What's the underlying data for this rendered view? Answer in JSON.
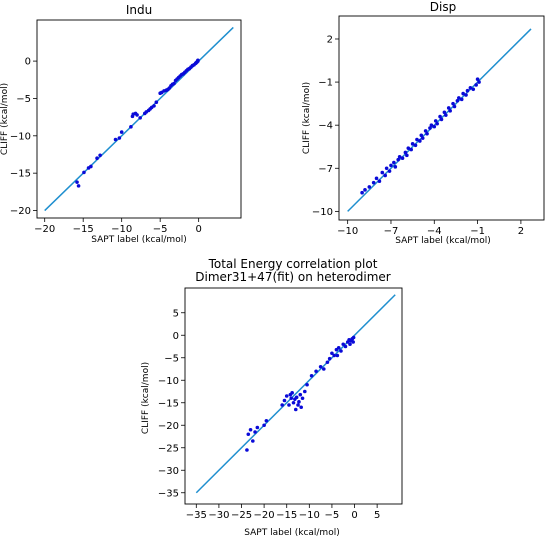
{
  "colors": {
    "line": "#1f8fcf",
    "points": "#0a0ad8"
  },
  "chart_data": [
    {
      "type": "scatter",
      "title": "Indu",
      "xlabel": "SAPT label (kcal/mol)",
      "ylabel": "CLIFF (kcal/mol)",
      "xlim": [
        -21,
        5.5
      ],
      "ylim": [
        -21,
        5.5
      ],
      "xticks": [
        -20,
        -15,
        -10,
        -5,
        0
      ],
      "yticks": [
        -20,
        -15,
        -10,
        -5,
        0
      ],
      "reference_line": [
        [
          -20,
          -20
        ],
        [
          4.5,
          4.5
        ]
      ],
      "points": [
        [
          -15.8,
          -16.2
        ],
        [
          -15.6,
          -16.7
        ],
        [
          -14.9,
          -14.9
        ],
        [
          -14.3,
          -14.3
        ],
        [
          -14.0,
          -14.1
        ],
        [
          -13.2,
          -13.0
        ],
        [
          -12.8,
          -12.6
        ],
        [
          -10.8,
          -10.5
        ],
        [
          -10.3,
          -10.3
        ],
        [
          -10.0,
          -9.5
        ],
        [
          -8.8,
          -8.8
        ],
        [
          -8.6,
          -7.4
        ],
        [
          -8.5,
          -7.1
        ],
        [
          -8.2,
          -7.0
        ],
        [
          -8.0,
          -7.2
        ],
        [
          -7.6,
          -7.6
        ],
        [
          -7.0,
          -7.0
        ],
        [
          -6.8,
          -6.8
        ],
        [
          -6.5,
          -6.6
        ],
        [
          -6.3,
          -6.4
        ],
        [
          -6.1,
          -6.2
        ],
        [
          -5.8,
          -6.0
        ],
        [
          -5.5,
          -5.5
        ],
        [
          -5.0,
          -4.3
        ],
        [
          -4.8,
          -4.2
        ],
        [
          -4.5,
          -4.0
        ],
        [
          -4.2,
          -3.9
        ],
        [
          -4.0,
          -3.8
        ],
        [
          -3.8,
          -3.6
        ],
        [
          -3.6,
          -3.3
        ],
        [
          -3.4,
          -3.1
        ],
        [
          -3.2,
          -3.0
        ],
        [
          -3.0,
          -2.6
        ],
        [
          -2.8,
          -2.4
        ],
        [
          -2.6,
          -2.2
        ],
        [
          -2.4,
          -2.0
        ],
        [
          -2.2,
          -1.8
        ],
        [
          -2.0,
          -1.7
        ],
        [
          -1.8,
          -1.5
        ],
        [
          -1.6,
          -1.3
        ],
        [
          -1.4,
          -1.1
        ],
        [
          -1.2,
          -1.0
        ],
        [
          -1.0,
          -0.8
        ],
        [
          -0.8,
          -0.6
        ],
        [
          -0.6,
          -0.5
        ],
        [
          -0.4,
          -0.3
        ],
        [
          -0.3,
          -0.2
        ],
        [
          -0.2,
          -0.1
        ],
        [
          -0.1,
          0.0
        ],
        [
          -0.1,
          0.1
        ]
      ]
    },
    {
      "type": "scatter",
      "title": "Disp",
      "xlabel": "SAPT label (kcal/mol)",
      "ylabel": "CLIFF (kcal/mol)",
      "xlim": [
        -10.6,
        3.6
      ],
      "ylim": [
        -10.6,
        3.6
      ],
      "xticks": [
        -10,
        -7,
        -4,
        -1,
        2
      ],
      "yticks": [
        -10,
        -7,
        -4,
        -1,
        2
      ],
      "reference_line": [
        [
          -10,
          -10
        ],
        [
          2.7,
          2.7
        ]
      ],
      "points": [
        [
          -9.0,
          -8.7
        ],
        [
          -8.8,
          -8.5
        ],
        [
          -8.5,
          -8.3
        ],
        [
          -8.2,
          -8.0
        ],
        [
          -8.0,
          -7.7
        ],
        [
          -7.8,
          -7.9
        ],
        [
          -7.6,
          -7.3
        ],
        [
          -7.4,
          -7.5
        ],
        [
          -7.3,
          -7.0
        ],
        [
          -7.1,
          -7.2
        ],
        [
          -7.0,
          -6.8
        ],
        [
          -6.8,
          -6.6
        ],
        [
          -6.7,
          -6.9
        ],
        [
          -6.5,
          -6.4
        ],
        [
          -6.4,
          -6.2
        ],
        [
          -6.2,
          -6.3
        ],
        [
          -6.0,
          -5.9
        ],
        [
          -5.9,
          -6.1
        ],
        [
          -5.8,
          -5.6
        ],
        [
          -5.6,
          -5.7
        ],
        [
          -5.5,
          -5.3
        ],
        [
          -5.3,
          -5.4
        ],
        [
          -5.2,
          -5.0
        ],
        [
          -5.0,
          -5.1
        ],
        [
          -4.9,
          -4.7
        ],
        [
          -4.8,
          -4.9
        ],
        [
          -4.6,
          -4.4
        ],
        [
          -4.5,
          -4.6
        ],
        [
          -4.3,
          -4.2
        ],
        [
          -4.2,
          -4.0
        ],
        [
          -4.0,
          -4.1
        ],
        [
          -3.9,
          -3.7
        ],
        [
          -3.8,
          -3.9
        ],
        [
          -3.6,
          -3.4
        ],
        [
          -3.5,
          -3.6
        ],
        [
          -3.3,
          -3.1
        ],
        [
          -3.2,
          -3.3
        ],
        [
          -3.0,
          -2.8
        ],
        [
          -2.9,
          -3.0
        ],
        [
          -2.7,
          -2.5
        ],
        [
          -2.6,
          -2.7
        ],
        [
          -2.4,
          -2.3
        ],
        [
          -2.3,
          -2.1
        ],
        [
          -2.1,
          -2.2
        ],
        [
          -2.0,
          -1.8
        ],
        [
          -1.8,
          -1.9
        ],
        [
          -1.7,
          -1.6
        ],
        [
          -1.5,
          -1.4
        ],
        [
          -1.3,
          -1.5
        ],
        [
          -1.1,
          -1.2
        ],
        [
          -1.0,
          -0.8
        ],
        [
          -0.9,
          -1.0
        ]
      ]
    },
    {
      "type": "scatter",
      "title": "Total Energy correlation plot",
      "subtitle": "Dimer31+47(fit) on heterodimer",
      "xlabel": "SAPT label (kcal/mol)",
      "ylabel": "CLIFF (kcal/mol)",
      "xlim": [
        -37.5,
        10.5
      ],
      "ylim": [
        -37.5,
        10.5
      ],
      "xticks": [
        -35,
        -30,
        -25,
        -20,
        -15,
        -10,
        -5,
        0,
        5
      ],
      "yticks": [
        -35,
        -30,
        -25,
        -20,
        -15,
        -10,
        -5,
        0,
        5
      ],
      "reference_line": [
        [
          -35,
          -35
        ],
        [
          9,
          9
        ]
      ],
      "points": [
        [
          -23.8,
          -25.5
        ],
        [
          -23.5,
          -22.0
        ],
        [
          -23.0,
          -21.0
        ],
        [
          -22.5,
          -23.5
        ],
        [
          -22.0,
          -21.5
        ],
        [
          -21.5,
          -20.5
        ],
        [
          -20.0,
          -20.0
        ],
        [
          -19.5,
          -19.0
        ],
        [
          -16.0,
          -15.5
        ],
        [
          -15.5,
          -14.5
        ],
        [
          -15.0,
          -13.5
        ],
        [
          -14.5,
          -15.5
        ],
        [
          -14.2,
          -13.2
        ],
        [
          -14.0,
          -14.0
        ],
        [
          -13.8,
          -12.8
        ],
        [
          -13.5,
          -15.0
        ],
        [
          -13.2,
          -14.2
        ],
        [
          -13.0,
          -16.5
        ],
        [
          -12.8,
          -13.8
        ],
        [
          -12.5,
          -15.5
        ],
        [
          -12.3,
          -14.8
        ],
        [
          -12.0,
          -13.2
        ],
        [
          -11.8,
          -16.0
        ],
        [
          -11.5,
          -14.0
        ],
        [
          -11.0,
          -12.5
        ],
        [
          -10.5,
          -11.0
        ],
        [
          -9.5,
          -9.0
        ],
        [
          -8.5,
          -8.0
        ],
        [
          -7.5,
          -7.0
        ],
        [
          -6.8,
          -7.5
        ],
        [
          -6.0,
          -6.0
        ],
        [
          -5.5,
          -5.2
        ],
        [
          -5.0,
          -4.0
        ],
        [
          -4.5,
          -4.5
        ],
        [
          -4.0,
          -3.2
        ],
        [
          -3.8,
          -4.5
        ],
        [
          -3.5,
          -2.8
        ],
        [
          -3.0,
          -3.5
        ],
        [
          -2.5,
          -2.0
        ],
        [
          -2.0,
          -2.5
        ],
        [
          -1.5,
          -1.5
        ],
        [
          -1.2,
          -1.0
        ],
        [
          -1.0,
          -2.0
        ],
        [
          -0.8,
          -1.2
        ],
        [
          -0.5,
          -0.8
        ],
        [
          -0.3,
          -1.5
        ],
        [
          -0.2,
          -0.5
        ]
      ]
    }
  ]
}
